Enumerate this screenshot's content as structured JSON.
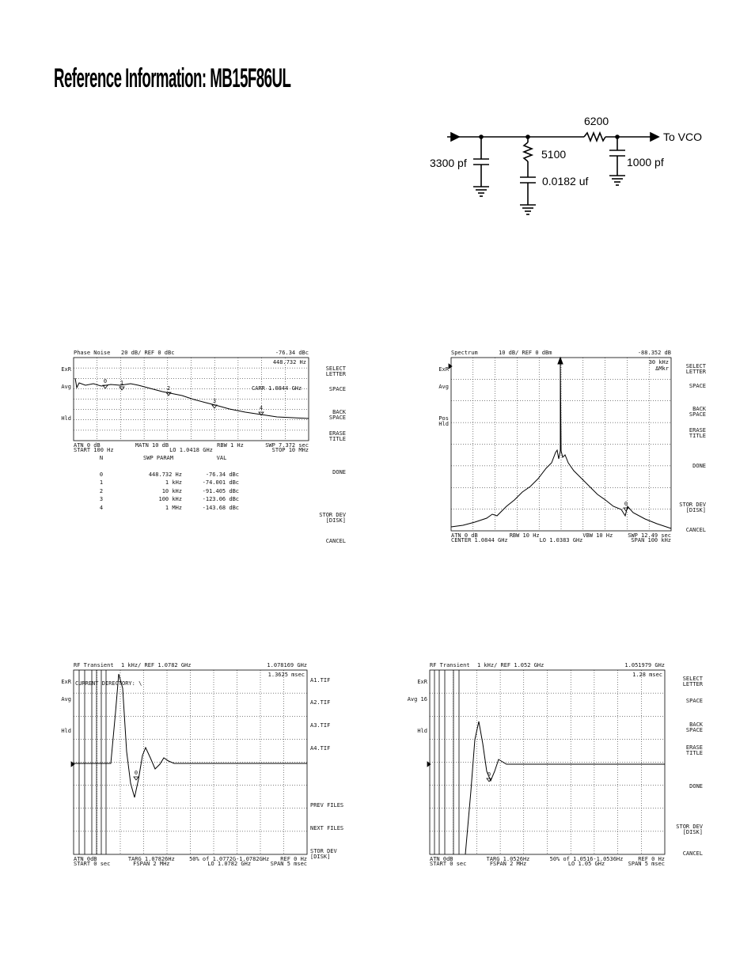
{
  "title": "Reference Information: MB15F86UL",
  "schematic": {
    "r_series": "6200",
    "output": "To VCO",
    "r_shunt": "5100",
    "c1": "3300 pf",
    "c2": "0.0182 uf",
    "c3": "1000 pf"
  },
  "panels": [
    {
      "header": [
        "Phase Noise",
        "20 dB/ REF 0 dBc",
        "-76.34 dBc"
      ],
      "readout": [
        "448.732 Hz"
      ],
      "note": "CARR 1.0844 GHz",
      "side": [
        "ExR",
        "Avg",
        "Hld"
      ],
      "softkeys": [
        "SELECT LETTER",
        "SPACE",
        "BACK SPACE",
        "ERASE TITLE",
        "DONE",
        "STOR DEV [DISK]",
        "CANCEL"
      ],
      "footer": [
        [
          "ATN 0 dB",
          "MATN 10 dB",
          "RBW 1 Hz",
          "SWP 7.372 sec"
        ],
        [
          "START 100 Hz",
          "LO 1.0418 GHz",
          "STOP 10 MHz"
        ]
      ],
      "markers": [
        "0",
        "1",
        "2",
        "3",
        "4"
      ],
      "table": {
        "columns": [
          "N",
          "SWP PARAM",
          "VAL"
        ],
        "rows": [
          [
            "0",
            "448.732 Hz",
            "-76.34 dBc"
          ],
          [
            "1",
            "1 kHz",
            "-74.001 dBc"
          ],
          [
            "2",
            "10 kHz",
            "-91.405 dBc"
          ],
          [
            "3",
            "100 kHz",
            "-123.06 dBc"
          ],
          [
            "4",
            "1 MHz",
            "-143.68 dBc"
          ]
        ]
      }
    },
    {
      "header": [
        "Spectrum",
        "10 dB/ REF 0 dBm",
        "-88.352 dB"
      ],
      "readout": [
        "30 kHz",
        "ΔMkr"
      ],
      "side": [
        "ExR",
        "Avg",
        "Pos Hld"
      ],
      "softkeys": [
        "SELECT LETTER",
        "SPACE",
        "BACK SPACE",
        "ERASE TITLE",
        "DONE",
        "STOR DEV [DISK]",
        "CANCEL"
      ],
      "footer": [
        [
          "ATN 0 dB",
          "RBW 10 Hz",
          "VBW 10 Hz",
          "SWP 12.49 sec"
        ],
        [
          "CENTER 1.0844 GHz",
          "LO 1.0383 GHz",
          "SPAN 100 kHz"
        ]
      ],
      "markers": [
        "0"
      ]
    },
    {
      "header": [
        "RF Transient",
        "1 kHz/ REF 1.0782 GHz",
        "1.078169 GHz"
      ],
      "readout": [
        "1.3625 msec"
      ],
      "note": "CURRENT DIRECTORY: \\",
      "side": [
        "ExR",
        "Avg",
        "Hld"
      ],
      "softkeys": [
        "A1.TIF",
        "A2.TIF",
        "A3.TIF",
        "A4.TIF",
        "PREV FILES",
        "NEXT FILES",
        "STOR DEV [DISK]"
      ],
      "footer": [
        [
          "ATN 0dB",
          "TARG 1.07826Hz",
          "50% of 1.0772G-1.0782GHz",
          "REF 0 Hz"
        ],
        [
          "START 0 sec",
          "FSPAN 2 MHz",
          "LO 1.0782 GHz",
          "SPAN 5 msec"
        ]
      ],
      "markers": [
        "0"
      ]
    },
    {
      "header": [
        "RF Transient",
        "1 kHz/ REF 1.052 GHz",
        "1.051979 GHz"
      ],
      "readout": [
        "1.28 msec"
      ],
      "side": [
        "ExR",
        "Avg 16",
        "Hld"
      ],
      "softkeys": [
        "SELECT LETTER",
        "SPACE",
        "BACK SPACE",
        "ERASE TITLE",
        "DONE",
        "STOR DEV [DISK]",
        "CANCEL"
      ],
      "footer": [
        [
          "ATN 0dB",
          "TARG 1.0526Hz",
          "50% of 1.0516-1.0536Hz",
          "REF 0 Hz"
        ],
        [
          "START 0 sec",
          "FSPAN 2 MHz",
          "LO 1.05 GHz",
          "SPAN 5 msec"
        ]
      ],
      "markers": [
        "0"
      ]
    }
  ]
}
